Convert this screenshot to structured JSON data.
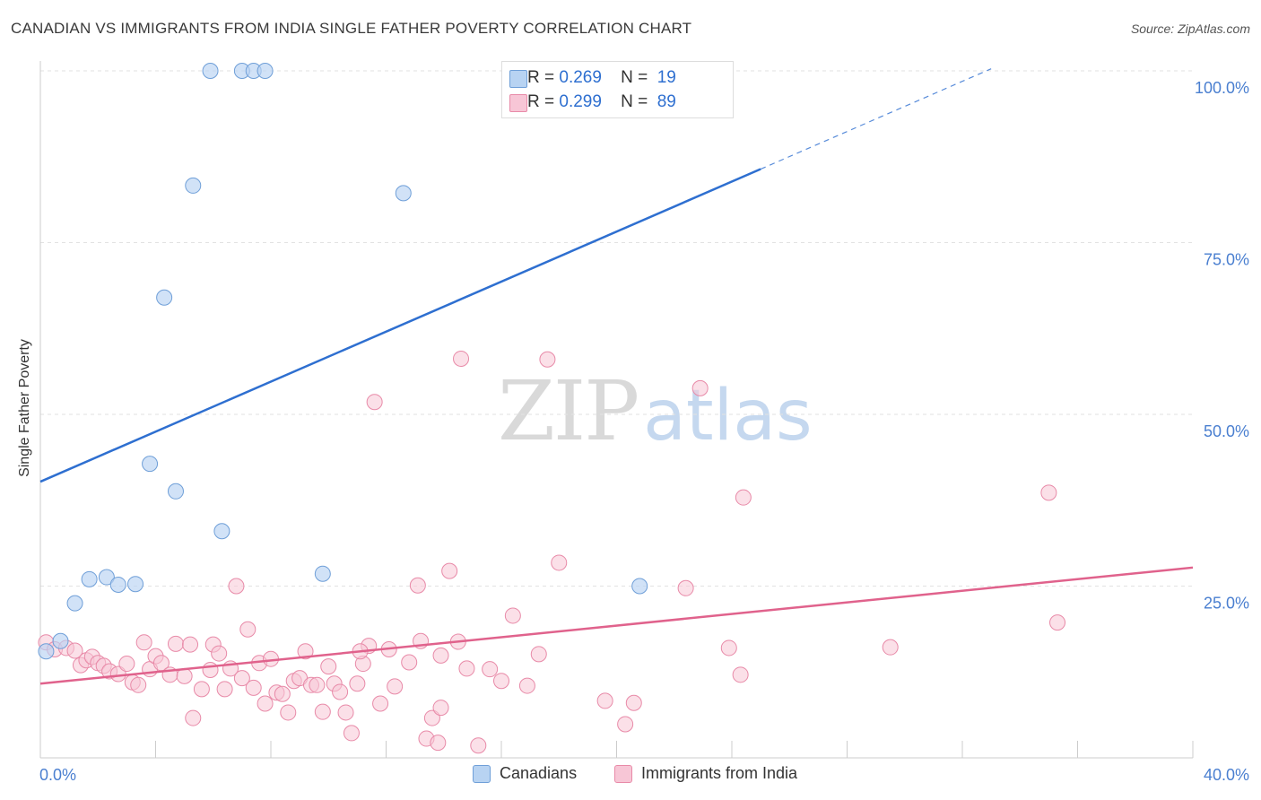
{
  "title": "CANADIAN VS IMMIGRANTS FROM INDIA SINGLE FATHER POVERTY CORRELATION CHART",
  "source": "Source: ZipAtlas.com",
  "watermark": {
    "zip": "ZIP",
    "atlas": "atlas"
  },
  "legend": {
    "rows": [
      {
        "r_label": "R =",
        "r_value": "0.269",
        "n_label": "N =",
        "n_value": "19"
      },
      {
        "r_label": "R =",
        "r_value": "0.299",
        "n_label": "N =",
        "n_value": "89"
      }
    ]
  },
  "colors": {
    "canadians_fill": "#b8d3f2",
    "canadians_stroke": "#6f9fd8",
    "canadians_line": "#2e6fd0",
    "india_fill": "#f7c6d6",
    "india_stroke": "#e88aa8",
    "india_line": "#e0628c",
    "axis_tick_label": "#4a7fd0",
    "grid": "#e2e2e2"
  },
  "chart_data": {
    "type": "scatter",
    "title": "CANADIAN VS IMMIGRANTS FROM INDIA SINGLE FATHER POVERTY CORRELATION CHART",
    "xlabel": "",
    "ylabel": "Single Father Poverty",
    "xlim": [
      0,
      40
    ],
    "ylim": [
      0,
      100
    ],
    "x_tick_labels": [
      "0.0%",
      "40.0%"
    ],
    "y_tick_values": [
      25,
      50,
      75,
      100
    ],
    "y_tick_labels": [
      "25.0%",
      "50.0%",
      "75.0%",
      "100.0%"
    ],
    "grid": true,
    "legend_position": "top-center",
    "series": [
      {
        "name": "Canadians",
        "r": 0.269,
        "n": 19,
        "points": [
          [
            0.2,
            15.5
          ],
          [
            0.7,
            17.0
          ],
          [
            1.2,
            22.5
          ],
          [
            1.7,
            26.0
          ],
          [
            2.3,
            26.3
          ],
          [
            2.7,
            25.2
          ],
          [
            3.3,
            25.3
          ],
          [
            3.8,
            42.8
          ],
          [
            4.3,
            67.0
          ],
          [
            4.7,
            38.8
          ],
          [
            5.3,
            83.3
          ],
          [
            5.9,
            100.0
          ],
          [
            6.3,
            33.0
          ],
          [
            7.0,
            100.0
          ],
          [
            7.4,
            100.0
          ],
          [
            7.8,
            100.0
          ],
          [
            9.8,
            26.8
          ],
          [
            12.6,
            82.2
          ],
          [
            20.8,
            25.0
          ]
        ],
        "trend": {
          "x0": 0,
          "y0": 40.2,
          "x1": 25,
          "y1": 85.7,
          "dash_x1": 33,
          "dash_y1": 100.3
        }
      },
      {
        "name": "Immigrants from India",
        "r": 0.299,
        "n": 89,
        "points": [
          [
            0.2,
            16.8
          ],
          [
            0.5,
            15.8
          ],
          [
            0.9,
            16.0
          ],
          [
            1.2,
            15.6
          ],
          [
            1.4,
            13.5
          ],
          [
            1.6,
            14.2
          ],
          [
            1.8,
            14.7
          ],
          [
            2.0,
            13.8
          ],
          [
            2.2,
            13.4
          ],
          [
            2.4,
            12.6
          ],
          [
            2.7,
            12.2
          ],
          [
            3.0,
            13.7
          ],
          [
            3.2,
            11.0
          ],
          [
            3.4,
            10.6
          ],
          [
            3.6,
            16.8
          ],
          [
            3.8,
            12.9
          ],
          [
            4.0,
            14.8
          ],
          [
            4.2,
            13.8
          ],
          [
            4.5,
            12.1
          ],
          [
            4.7,
            16.6
          ],
          [
            5.0,
            11.9
          ],
          [
            5.2,
            16.5
          ],
          [
            5.3,
            5.8
          ],
          [
            5.6,
            10.0
          ],
          [
            5.9,
            12.8
          ],
          [
            6.0,
            16.5
          ],
          [
            6.2,
            15.2
          ],
          [
            6.4,
            10.0
          ],
          [
            6.6,
            13.0
          ],
          [
            6.8,
            25.0
          ],
          [
            7.0,
            11.6
          ],
          [
            7.2,
            18.7
          ],
          [
            7.4,
            10.2
          ],
          [
            7.6,
            13.8
          ],
          [
            7.8,
            7.9
          ],
          [
            8.0,
            14.4
          ],
          [
            8.2,
            9.5
          ],
          [
            8.4,
            9.3
          ],
          [
            8.6,
            6.6
          ],
          [
            8.8,
            11.2
          ],
          [
            9.0,
            11.6
          ],
          [
            9.2,
            15.5
          ],
          [
            9.4,
            10.6
          ],
          [
            9.6,
            10.6
          ],
          [
            9.8,
            6.7
          ],
          [
            10.0,
            13.3
          ],
          [
            10.2,
            10.8
          ],
          [
            10.4,
            9.6
          ],
          [
            10.6,
            6.6
          ],
          [
            10.8,
            3.6
          ],
          [
            11.0,
            10.8
          ],
          [
            11.2,
            13.7
          ],
          [
            11.4,
            16.3
          ],
          [
            11.6,
            51.8
          ],
          [
            11.8,
            7.9
          ],
          [
            12.1,
            15.8
          ],
          [
            12.3,
            10.4
          ],
          [
            12.8,
            13.9
          ],
          [
            13.2,
            17.0
          ],
          [
            13.4,
            2.8
          ],
          [
            13.6,
            5.8
          ],
          [
            13.8,
            2.2
          ],
          [
            13.9,
            7.3
          ],
          [
            14.2,
            27.2
          ],
          [
            14.6,
            58.1
          ],
          [
            14.8,
            13.0
          ],
          [
            15.2,
            1.8
          ],
          [
            16.0,
            11.2
          ],
          [
            16.4,
            20.7
          ],
          [
            16.9,
            10.5
          ],
          [
            17.3,
            15.1
          ],
          [
            17.6,
            58.0
          ],
          [
            18.0,
            28.4
          ],
          [
            19.6,
            8.3
          ],
          [
            20.3,
            4.9
          ],
          [
            20.6,
            8.0
          ],
          [
            22.4,
            24.7
          ],
          [
            22.9,
            53.8
          ],
          [
            23.9,
            16.0
          ],
          [
            24.3,
            12.1
          ],
          [
            24.4,
            37.9
          ],
          [
            29.5,
            16.1
          ],
          [
            35.0,
            38.6
          ],
          [
            35.3,
            19.7
          ],
          [
            13.1,
            25.1
          ],
          [
            13.9,
            14.9
          ],
          [
            14.5,
            16.9
          ],
          [
            15.6,
            12.9
          ],
          [
            11.1,
            15.5
          ]
        ],
        "trend": {
          "x0": 0,
          "y0": 10.8,
          "x1": 40,
          "y1": 27.7
        }
      }
    ]
  },
  "bottom_legend": {
    "series1": "Canadians",
    "series2": "Immigrants from India"
  }
}
